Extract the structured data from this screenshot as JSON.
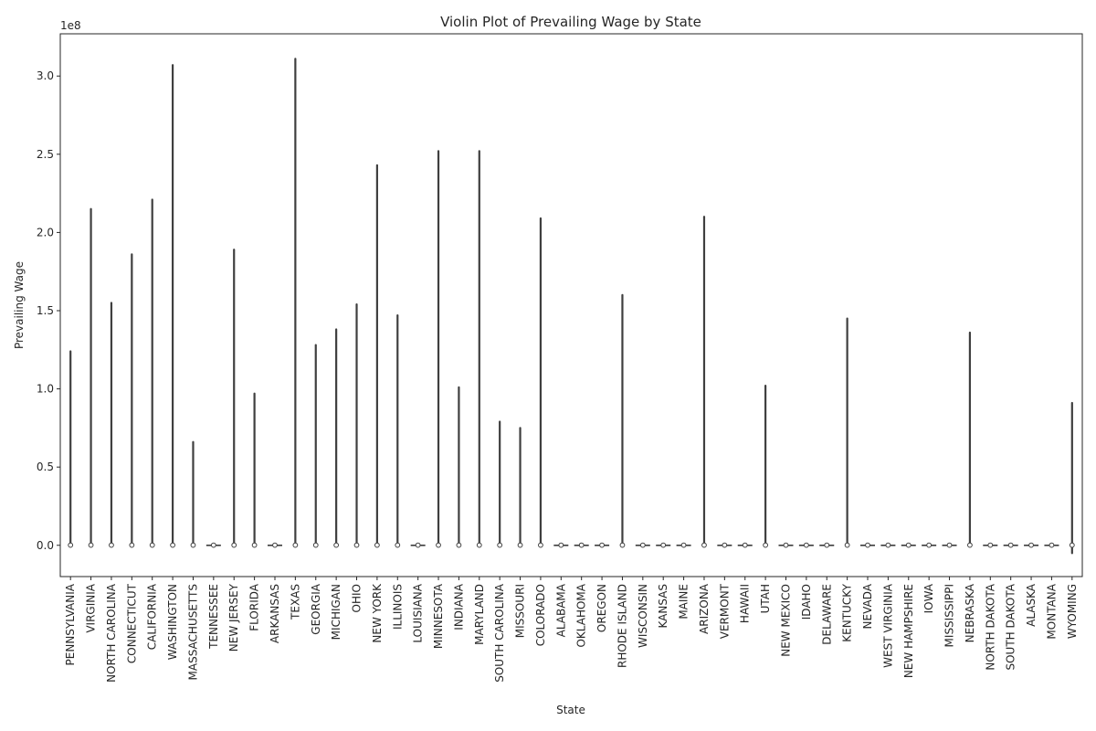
{
  "chart_data": {
    "type": "violin",
    "title": "Violin Plot of Prevailing Wage by State",
    "xlabel": "State",
    "ylabel": "Prevailing Wage",
    "y_offset_text": "1e8",
    "y_scale_factor": 100000000,
    "ylim": [
      -0.2,
      3.27
    ],
    "yticks": [
      0.0,
      0.5,
      1.0,
      1.5,
      2.0,
      2.5,
      3.0
    ],
    "ytick_labels": [
      "0.0",
      "0.5",
      "1.0",
      "1.5",
      "2.0",
      "2.5",
      "3.0"
    ],
    "grid": false,
    "series_color": "#3f3f3f",
    "categories": [
      "PENNSYLVANIA",
      "VIRGINIA",
      "NORTH CAROLINA",
      "CONNECTICUT",
      "CALIFORNIA",
      "WASHINGTON",
      "MASSACHUSETTS",
      "TENNESSEE",
      "NEW JERSEY",
      "FLORIDA",
      "ARKANSAS",
      "TEXAS",
      "GEORGIA",
      "MICHIGAN",
      "OHIO",
      "NEW YORK",
      "ILLINOIS",
      "LOUISIANA",
      "MINNESOTA",
      "INDIANA",
      "MARYLAND",
      "SOUTH CAROLINA",
      "MISSOURI",
      "COLORADO",
      "ALABAMA",
      "OKLAHOMA",
      "OREGON",
      "RHODE ISLAND",
      "WISCONSIN",
      "KANSAS",
      "MAINE",
      "ARIZONA",
      "VERMONT",
      "HAWAII",
      "UTAH",
      "NEW MEXICO",
      "IDAHO",
      "DELAWARE",
      "KENTUCKY",
      "NEVADA",
      "WEST VIRGINIA",
      "NEW HAMPSHIRE",
      "IOWA",
      "MISSISSIPPI",
      "NEBRASKA",
      "NORTH DAKOTA",
      "SOUTH DAKOTA",
      "ALASKA",
      "MONTANA",
      "WYOMING"
    ],
    "max_values": [
      1.24,
      2.15,
      1.55,
      1.86,
      2.21,
      3.07,
      0.66,
      0.01,
      1.89,
      0.97,
      0.01,
      3.11,
      1.28,
      1.38,
      1.54,
      2.43,
      1.47,
      0.01,
      2.52,
      1.01,
      2.52,
      0.79,
      0.75,
      2.09,
      0.01,
      0.01,
      0.01,
      1.6,
      0.01,
      0.01,
      0.01,
      2.1,
      0.01,
      0.01,
      1.02,
      0.01,
      0.01,
      0.01,
      1.45,
      0.01,
      0.01,
      0.01,
      0.01,
      0.01,
      1.36,
      0.01,
      0.01,
      0.01,
      0.01,
      0.91
    ],
    "min_values": [
      0,
      0,
      0,
      0,
      0,
      0,
      0,
      0,
      0,
      0,
      0,
      0,
      0,
      0,
      0,
      0,
      0,
      0,
      0,
      0,
      0,
      0,
      0,
      0,
      0,
      0,
      0,
      0,
      0,
      0,
      0,
      0,
      0,
      0,
      0,
      0,
      0,
      0,
      0,
      0,
      0,
      0,
      0,
      0,
      0,
      0,
      0,
      0,
      0,
      -0.05
    ],
    "median_values": [
      0.001,
      0.001,
      0.001,
      0.001,
      0.001,
      0.001,
      0.001,
      0.001,
      0.001,
      0.001,
      0.001,
      0.001,
      0.001,
      0.001,
      0.001,
      0.001,
      0.001,
      0.001,
      0.001,
      0.001,
      0.001,
      0.001,
      0.001,
      0.001,
      0.001,
      0.001,
      0.001,
      0.001,
      0.001,
      0.001,
      0.001,
      0.001,
      0.001,
      0.001,
      0.001,
      0.001,
      0.001,
      0.001,
      0.001,
      0.001,
      0.001,
      0.001,
      0.001,
      0.001,
      0.001,
      0.001,
      0.001,
      0.001,
      0.001,
      0.001
    ]
  }
}
